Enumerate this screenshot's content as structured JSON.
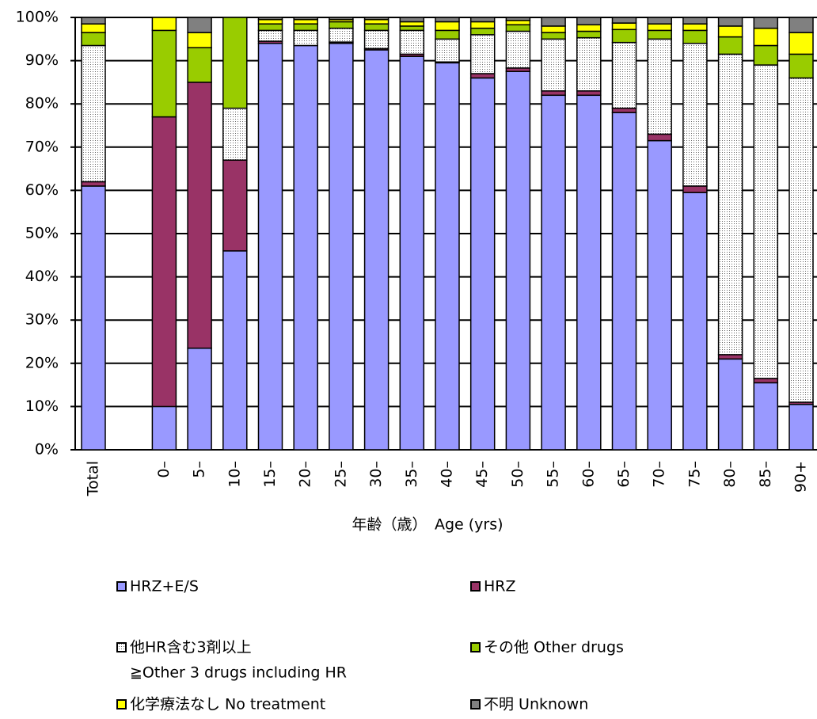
{
  "chart_data": {
    "type": "stacked_bar_100",
    "x_label": "年齢（歳）　Age (yrs)",
    "categories": [
      "Total",
      null,
      "0–",
      "5–",
      "10–",
      "15–",
      "20–",
      "25–",
      "30–",
      "35–",
      "40–",
      "45–",
      "50–",
      "55–",
      "60–",
      "65–",
      "70–",
      "75–",
      "80–",
      "85–",
      "90+"
    ],
    "series": [
      {
        "name": "HRZ+E/S",
        "color": "#9999ff",
        "values": [
          61,
          null,
          10,
          23.5,
          46,
          94,
          93.5,
          94,
          92.5,
          91,
          89.5,
          86,
          87.5,
          82,
          82,
          78,
          71.5,
          59.5,
          21,
          15.5,
          10.5
        ]
      },
      {
        "name": "HRZ",
        "color": "#993366",
        "values": [
          1,
          null,
          67,
          61.5,
          21,
          0.5,
          0,
          0.3,
          0.3,
          0.5,
          0.2,
          1,
          0.8,
          1,
          1,
          1,
          1.5,
          1.5,
          1,
          1,
          0.5
        ]
      },
      {
        "name": "他HR含む3剤以上",
        "name_line2": "≧Other 3 drugs including HR",
        "color": "#ffffff",
        "pattern": "dots",
        "values": [
          31.5,
          null,
          0,
          0,
          12,
          2.5,
          3.5,
          3.2,
          4.2,
          5.5,
          5.3,
          9,
          8.5,
          12,
          12.3,
          15.2,
          22,
          33,
          69.5,
          72.5,
          75
        ]
      },
      {
        "name": "その他 Other drugs",
        "color": "#99cc00",
        "values": [
          3,
          null,
          20,
          8,
          21,
          1.5,
          1.5,
          1.5,
          1.5,
          1,
          2,
          1.5,
          1.5,
          1.5,
          1.5,
          3,
          2,
          3,
          4,
          4.5,
          5.5
        ]
      },
      {
        "name": "化学療法なし No treatment",
        "color": "#ffff00",
        "values": [
          2,
          null,
          3,
          3.5,
          0,
          1,
          1,
          0.5,
          1,
          1,
          2,
          1.5,
          1,
          1.5,
          1.5,
          1.5,
          1.5,
          1.5,
          2.5,
          4,
          5
        ]
      },
      {
        "name": "不明 Unknown",
        "color": "#808080",
        "values": [
          1.5,
          null,
          0,
          3.5,
          0,
          0.5,
          0.5,
          0.5,
          0.5,
          1,
          1,
          1,
          0.7,
          2,
          1.7,
          1.3,
          1.5,
          1.5,
          2,
          2.5,
          3.5
        ]
      }
    ],
    "ylim": [
      0,
      100
    ],
    "yticks": [
      {
        "value": 0,
        "label": "0%"
      },
      {
        "value": 10,
        "label": "10%"
      },
      {
        "value": 20,
        "label": "20%"
      },
      {
        "value": 30,
        "label": "30%"
      },
      {
        "value": 40,
        "label": "40%"
      },
      {
        "value": 50,
        "label": "50%"
      },
      {
        "value": 60,
        "label": "60%"
      },
      {
        "value": 70,
        "label": "70%"
      },
      {
        "value": 80,
        "label": "80%"
      },
      {
        "value": 90,
        "label": "90%"
      },
      {
        "value": 100,
        "label": "100%"
      }
    ],
    "grid": true
  }
}
